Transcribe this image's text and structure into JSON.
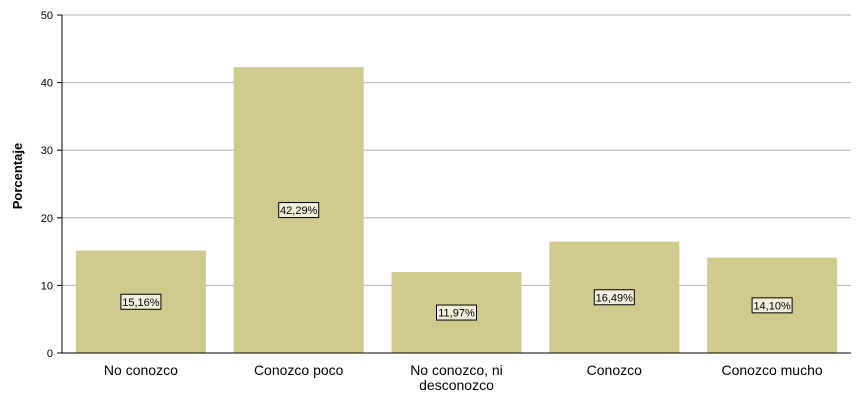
{
  "chart_data": {
    "type": "bar",
    "categories": [
      [
        "No conozco"
      ],
      [
        "Conozco poco"
      ],
      [
        "No conozco, ni",
        "desconozco"
      ],
      [
        "Conozco"
      ],
      [
        "Conozco mucho"
      ]
    ],
    "values": [
      15.16,
      42.29,
      11.97,
      16.49,
      14.1
    ],
    "data_labels": [
      "15,16%",
      "42,29%",
      "11,97%",
      "16,49%",
      "14,10%"
    ],
    "ylabel": "Porcentaje",
    "ylim": [
      0,
      50
    ],
    "yticks": [
      0,
      10,
      20,
      30,
      40,
      50
    ],
    "grid": true,
    "colors": {
      "bar": "#d1ca8f",
      "grid": "#b4b4b4",
      "axis": "#000000",
      "label_box_fill": "#f2f0dc"
    }
  }
}
